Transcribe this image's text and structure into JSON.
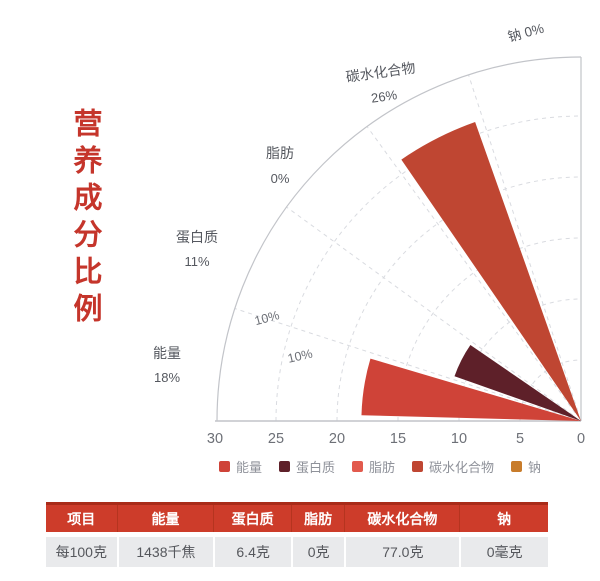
{
  "title": "营养成分比例",
  "chart_data": {
    "type": "bar",
    "layout": "polar-fan-quarter",
    "title": "营养成分比例",
    "categories": [
      "能量",
      "蛋白质",
      "脂肪",
      "碳水化合物",
      "钠"
    ],
    "values": [
      18,
      11,
      0,
      26,
      0
    ],
    "value_unit": "%",
    "value_labels": [
      "18%",
      "11%",
      "0%",
      "26%",
      "0%"
    ],
    "colors": [
      "#cf4338",
      "#5e2029",
      "#e25a4d",
      "#bf4632",
      "#c87c2b"
    ],
    "angle_span_deg": 90,
    "r_axis": {
      "min": 0,
      "max": 30,
      "ticks": [
        30,
        25,
        20,
        15,
        10,
        5,
        0
      ]
    },
    "grid": "dashed",
    "inner_grid_labels": [
      "10%",
      "10%"
    ],
    "legend_position": "bottom"
  },
  "legend": {
    "items": [
      "能量",
      "蛋白质",
      "脂肪",
      "碳水化合物",
      "钠"
    ]
  },
  "table": {
    "headers": [
      "项目",
      "能量",
      "蛋白质",
      "脂肪",
      "碳水化合物",
      "钠"
    ],
    "rows": [
      [
        "每100克",
        "1438千焦",
        "6.4克",
        "0克",
        "77.0克",
        "0毫克"
      ]
    ]
  },
  "colors": {
    "title_red": "#c5352b",
    "table_header_bg": "#cd3c2a",
    "table_header_border": "#a92b19",
    "table_row_bg": "#e9eaec",
    "axis_line": "#c2c4c9",
    "grid_dash": "#d9dbe0",
    "tick_text": "#6d7077",
    "label_text": "#55585f"
  }
}
